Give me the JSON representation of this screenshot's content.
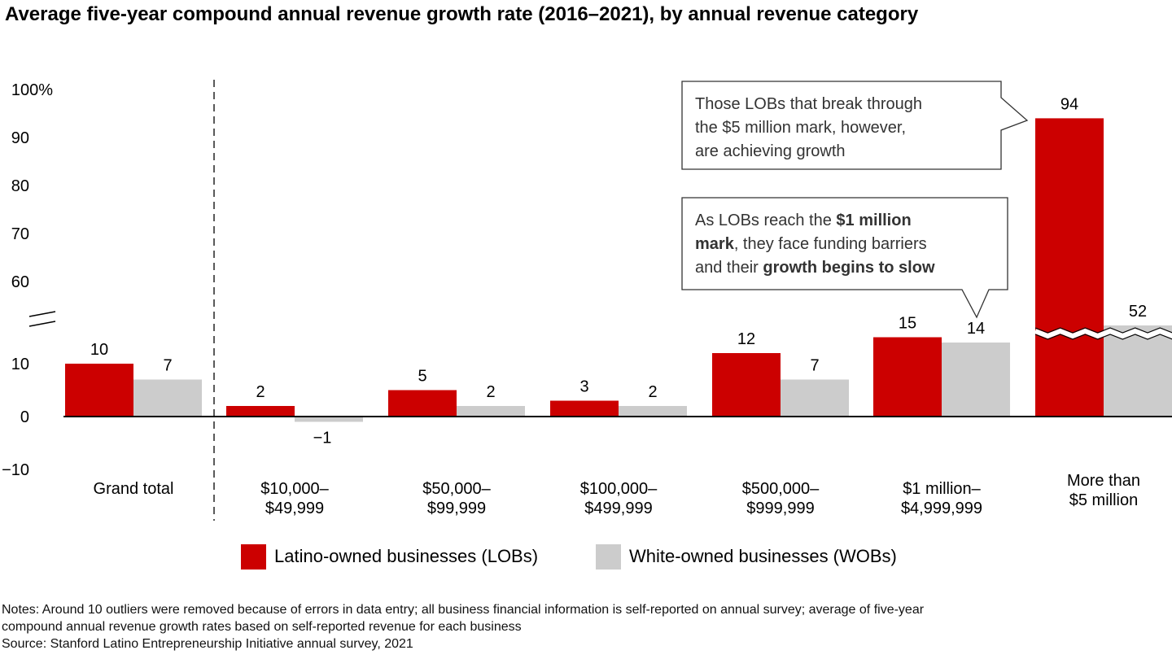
{
  "title": "Average five-year compound annual revenue growth rate (2016–2021), by annual revenue category",
  "colors": {
    "lob": "#cc0000",
    "wob": "#cccccc"
  },
  "chart_data": {
    "type": "bar",
    "categories": [
      [
        "Grand total"
      ],
      [
        "$10,000–",
        "$49,999"
      ],
      [
        "$50,000–",
        "$99,999"
      ],
      [
        "$100,000–",
        "$499,999"
      ],
      [
        "$500,000–",
        "$999,999"
      ],
      [
        "$1 million–",
        "$4,999,999"
      ],
      [
        "More than",
        "$5 million"
      ]
    ],
    "series": [
      {
        "name": "Latino-owned businesses (LOBs)",
        "values": [
          10,
          2,
          5,
          3,
          12,
          15,
          94
        ]
      },
      {
        "name": "White-owned businesses (WOBs)",
        "values": [
          7,
          -1,
          2,
          2,
          7,
          14,
          52
        ]
      }
    ],
    "value_labels": [
      [
        "10",
        "2",
        "5",
        "3",
        "12",
        "15",
        "94"
      ],
      [
        "7",
        "−1",
        "2",
        "2",
        "7",
        "14",
        "52"
      ]
    ],
    "yticks_lower": [
      "10",
      "0",
      "−10"
    ],
    "yticks_upper": [
      "100%",
      "90",
      "80",
      "70",
      "60"
    ],
    "axis_break": true,
    "legend_position": "bottom"
  },
  "callouts": {
    "upper": [
      "Those LOBs that break through",
      "the $5 million mark, however,",
      "are achieving growth"
    ],
    "lower": {
      "line1_pre": "As LOBs reach the ",
      "line1_bold": "$1 million",
      "line2_bold": "mark",
      "line2_post": ", they face funding barriers",
      "line3_pre": "and their ",
      "line3_bold": "growth begins to slow"
    }
  },
  "legend": {
    "lob": "Latino-owned businesses (LOBs)",
    "wob": "White-owned businesses (WOBs)"
  },
  "notes": {
    "line1": "Notes: Around 10 outliers were removed because of errors in data entry; all business financial information is self-reported on annual survey; average of five-year",
    "line2": "compound annual revenue growth rates based on self-reported revenue for each business",
    "source": "Source: Stanford Latino Entrepreneurship Initiative annual survey, 2021"
  }
}
